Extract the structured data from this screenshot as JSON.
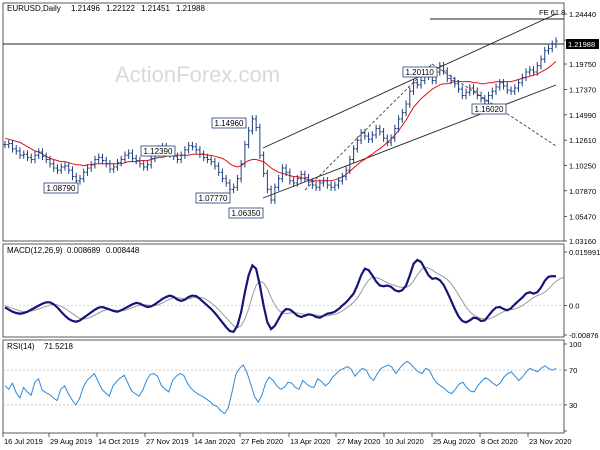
{
  "chart_data": [
    {
      "type": "candlestick",
      "title": "EURUSD,Daily",
      "ohlc": {
        "open": "1.21496",
        "high": "1.22122",
        "low": "1.21451",
        "close": "1.21988"
      },
      "last_price": "1.21988",
      "y_ticks": [
        "1.24440",
        "1.21988",
        "1.19750",
        "1.17370",
        "1.14990",
        "1.12610",
        "1.10250",
        "1.07870",
        "1.05470",
        "1.03160"
      ],
      "ylim": [
        1.0316,
        1.2444
      ],
      "x_ticks": [
        "16 Jul 2019",
        "29 Aug 2019",
        "14 Oct 2019",
        "27 Nov 2019",
        "14 Jan 2020",
        "27 Feb 2020",
        "13 Apr 2020",
        "27 May 2020",
        "10 Jul 2020",
        "25 Aug 2020",
        "8 Oct 2020",
        "23 Nov 2020"
      ],
      "annotations": [
        {
          "text": "1.08790",
          "x": "01 Oct 2019",
          "y": 1.0879
        },
        {
          "text": "1.12390",
          "x": "25 Dec 2019",
          "y": 1.1239
        },
        {
          "text": "1.07770",
          "x": "18 Feb 2020",
          "y": 1.0777
        },
        {
          "text": "1.14960",
          "x": "09 Mar 2020",
          "y": 1.1496
        },
        {
          "text": "1.06350",
          "x": "23 Mar 2020",
          "y": 1.0635
        },
        {
          "text": "1.20110",
          "x": "01 Sep 2020",
          "y": 1.2011
        },
        {
          "text": "1.16020",
          "x": "04 Nov 2020",
          "y": 1.1602
        }
      ],
      "fibonacci_label": "FE 61.8",
      "close_series": [
        1.122,
        1.123,
        1.118,
        1.116,
        1.112,
        1.113,
        1.11,
        1.108,
        1.112,
        1.115,
        1.111,
        1.108,
        1.104,
        1.1,
        1.098,
        1.101,
        1.102,
        1.098,
        1.092,
        1.088,
        1.09,
        1.096,
        1.1,
        1.103,
        1.108,
        1.11,
        1.107,
        1.104,
        1.099,
        1.101,
        1.105,
        1.108,
        1.112,
        1.114,
        1.109,
        1.107,
        1.104,
        1.101,
        1.103,
        1.109,
        1.115,
        1.118,
        1.12,
        1.116,
        1.113,
        1.111,
        1.108,
        1.112,
        1.117,
        1.121,
        1.12,
        1.117,
        1.113,
        1.11,
        1.108,
        1.106,
        1.102,
        1.096,
        1.09,
        1.086,
        1.08,
        1.082,
        1.09,
        1.104,
        1.122,
        1.135,
        1.146,
        1.138,
        1.112,
        1.095,
        1.08,
        1.07,
        1.082,
        1.09,
        1.1,
        1.096,
        1.088,
        1.086,
        1.09,
        1.094,
        1.091,
        1.087,
        1.084,
        1.082,
        1.086,
        1.088,
        1.084,
        1.082,
        1.084,
        1.088,
        1.092,
        1.098,
        1.108,
        1.118,
        1.126,
        1.133,
        1.13,
        1.127,
        1.131,
        1.137,
        1.134,
        1.128,
        1.124,
        1.128,
        1.137,
        1.146,
        1.152,
        1.16,
        1.172,
        1.18,
        1.178,
        1.182,
        1.19,
        1.186,
        1.182,
        1.19,
        1.196,
        1.191,
        1.184,
        1.182,
        1.179,
        1.174,
        1.168,
        1.171,
        1.175,
        1.172,
        1.168,
        1.165,
        1.163,
        1.168,
        1.172,
        1.176,
        1.18,
        1.177,
        1.173,
        1.172,
        1.175,
        1.18,
        1.185,
        1.19,
        1.192,
        1.19,
        1.196,
        1.202,
        1.21,
        1.212,
        1.216,
        1.219
      ],
      "ma_series": [
        1.128,
        1.127,
        1.126,
        1.125,
        1.124,
        1.122,
        1.12,
        1.118,
        1.116,
        1.115,
        1.113,
        1.111,
        1.109,
        1.108,
        1.107,
        1.106,
        1.106,
        1.105,
        1.104,
        1.103,
        1.103,
        1.102,
        1.103,
        1.103,
        1.104,
        1.104,
        1.104,
        1.104,
        1.104,
        1.104,
        1.104,
        1.104,
        1.105,
        1.106,
        1.106,
        1.106,
        1.107,
        1.107,
        1.107,
        1.108,
        1.109,
        1.11,
        1.11,
        1.111,
        1.112,
        1.112,
        1.112,
        1.112,
        1.112,
        1.112,
        1.113,
        1.113,
        1.113,
        1.113,
        1.112,
        1.112,
        1.111,
        1.11,
        1.109,
        1.107,
        1.104,
        1.102,
        1.101,
        1.102,
        1.105,
        1.107,
        1.108,
        1.108,
        1.107,
        1.106,
        1.103,
        1.1,
        1.098,
        1.096,
        1.095,
        1.094,
        1.093,
        1.092,
        1.092,
        1.091,
        1.09,
        1.089,
        1.088,
        1.088,
        1.088,
        1.088,
        1.088,
        1.088,
        1.089,
        1.09,
        1.092,
        1.094,
        1.097,
        1.1,
        1.103,
        1.106,
        1.108,
        1.111,
        1.113,
        1.116,
        1.118,
        1.121,
        1.124,
        1.127,
        1.131,
        1.135,
        1.14,
        1.145,
        1.151,
        1.157,
        1.161,
        1.165,
        1.168,
        1.171,
        1.174,
        1.176,
        1.178,
        1.179,
        1.179,
        1.18,
        1.181,
        1.181,
        1.181,
        1.181,
        1.181,
        1.18,
        1.18,
        1.179,
        1.179,
        1.18,
        1.18,
        1.181,
        1.181,
        1.181,
        1.181,
        1.181,
        1.182,
        1.183,
        1.184,
        1.185,
        1.186,
        1.187,
        1.188,
        1.19,
        1.192,
        1.194,
        1.197,
        1.2
      ]
    },
    {
      "type": "line",
      "title": "MACD(12,26,9)",
      "values_text": [
        "0.008689",
        "0.008448"
      ],
      "y_ticks": [
        "0.015991",
        "0.0",
        "-0.00876"
      ],
      "ylim": [
        -0.00876,
        0.015991
      ],
      "series": [
        {
          "values": [
            -0.0005,
            -0.0012,
            -0.0018,
            -0.0022,
            -0.0024,
            -0.0022,
            -0.0018,
            -0.0012,
            -0.0006,
            0.0,
            0.0006,
            0.001,
            0.001,
            0.0004,
            -0.0006,
            -0.0018,
            -0.003,
            -0.004,
            -0.0046,
            -0.0048,
            -0.0044,
            -0.0036,
            -0.0028,
            -0.002,
            -0.0012,
            -0.0006,
            -0.0004,
            -0.0008,
            -0.0012,
            -0.0016,
            -0.0018,
            -0.0014,
            -0.0008,
            -0.0002,
            0.0004,
            0.0008,
            0.0006,
            0.0,
            -0.0004,
            -0.0002,
            0.0004,
            0.0012,
            0.002,
            0.0026,
            0.003,
            0.0026,
            0.0018,
            0.0014,
            0.0018,
            0.0026,
            0.003,
            0.0028,
            0.002,
            0.001,
            0.0,
            -0.001,
            -0.0022,
            -0.0036,
            -0.005,
            -0.0064,
            -0.0076,
            -0.0078,
            -0.006,
            -0.002,
            0.004,
            0.009,
            0.012,
            0.011,
            0.006,
            0.0,
            -0.005,
            -0.007,
            -0.006,
            -0.004,
            -0.002,
            -0.001,
            -0.0012,
            -0.002,
            -0.003,
            -0.0034,
            -0.003,
            -0.0026,
            -0.0028,
            -0.0034,
            -0.0036,
            -0.003,
            -0.0024,
            -0.0022,
            -0.0018,
            -0.001,
            0.0,
            0.001,
            0.0022,
            0.0036,
            0.006,
            0.009,
            0.011,
            0.0106,
            0.009,
            0.0072,
            0.006,
            0.0058,
            0.006,
            0.0056,
            0.0046,
            0.0042,
            0.0046,
            0.006,
            0.009,
            0.0125,
            0.0136,
            0.013,
            0.011,
            0.009,
            0.008,
            0.0082,
            0.0076,
            0.0062,
            0.004,
            0.0016,
            -0.001,
            -0.0032,
            -0.0046,
            -0.005,
            -0.0044,
            -0.0036,
            -0.0038,
            -0.0046,
            -0.0044,
            -0.003,
            -0.0016,
            -0.0006,
            -0.0004,
            -0.001,
            -0.0014,
            -0.0008,
            0.0004,
            0.0014,
            0.0024,
            0.0036,
            0.004,
            0.0036,
            0.004,
            0.0054,
            0.0074,
            0.0086,
            0.0088,
            0.0087
          ]
        },
        {
          "values": [
            0.0,
            -0.0004,
            -0.0008,
            -0.0012,
            -0.0016,
            -0.0018,
            -0.0018,
            -0.0016,
            -0.0013,
            -0.001,
            -0.0006,
            -0.0002,
            0.0002,
            0.0004,
            0.0002,
            -0.0002,
            -0.0008,
            -0.0016,
            -0.0024,
            -0.0032,
            -0.0038,
            -0.004,
            -0.0038,
            -0.0034,
            -0.0028,
            -0.0022,
            -0.0016,
            -0.0012,
            -0.0012,
            -0.0013,
            -0.0015,
            -0.0016,
            -0.0014,
            -0.001,
            -0.0006,
            -0.0002,
            0.0002,
            0.0003,
            0.0002,
            0.0,
            0.0,
            0.0003,
            0.0008,
            0.0014,
            0.002,
            0.0024,
            0.0024,
            0.0022,
            0.002,
            0.002,
            0.0023,
            0.0025,
            0.0025,
            0.0022,
            0.0016,
            0.0008,
            -0.0001,
            -0.0012,
            -0.0024,
            -0.0036,
            -0.0048,
            -0.006,
            -0.0066,
            -0.006,
            -0.004,
            -0.001,
            0.003,
            0.006,
            0.0072,
            0.0068,
            0.005,
            0.0024,
            0.0002,
            -0.0014,
            -0.0022,
            -0.0024,
            -0.0022,
            -0.0021,
            -0.0022,
            -0.0024,
            -0.0026,
            -0.0027,
            -0.0027,
            -0.0028,
            -0.003,
            -0.0031,
            -0.003,
            -0.0028,
            -0.0026,
            -0.0022,
            -0.0016,
            -0.0008,
            0.0,
            0.001,
            0.0022,
            0.004,
            0.006,
            0.0076,
            0.0084,
            0.0084,
            0.008,
            0.0074,
            0.0068,
            0.0064,
            0.006,
            0.0056,
            0.0054,
            0.0054,
            0.006,
            0.0074,
            0.0092,
            0.0106,
            0.0114,
            0.0112,
            0.0106,
            0.0098,
            0.0092,
            0.0086,
            0.0078,
            0.0066,
            0.005,
            0.0032,
            0.0014,
            -0.0004,
            -0.0018,
            -0.0028,
            -0.0034,
            -0.0038,
            -0.004,
            -0.004,
            -0.0036,
            -0.003,
            -0.0024,
            -0.0018,
            -0.0014,
            -0.0012,
            -0.001,
            -0.0006,
            0.0,
            0.0008,
            0.0016,
            0.0024,
            0.003,
            0.0034,
            0.004,
            0.005,
            0.0062,
            0.0072,
            0.008,
            0.0084
          ]
        }
      ]
    },
    {
      "type": "line",
      "title": "RSI(14)",
      "values_text": [
        "71.5218"
      ],
      "y_ticks": [
        "100",
        "70",
        "30",
        "0"
      ],
      "ylim": [
        0,
        100
      ],
      "series": [
        {
          "values": [
            52,
            48,
            55,
            44,
            38,
            50,
            45,
            41,
            56,
            60,
            47,
            44,
            42,
            38,
            35,
            48,
            52,
            43,
            36,
            30,
            37,
            50,
            58,
            62,
            66,
            57,
            48,
            44,
            40,
            52,
            57,
            61,
            64,
            55,
            46,
            43,
            40,
            47,
            58,
            65,
            66,
            63,
            52,
            48,
            45,
            58,
            63,
            66,
            64,
            55,
            49,
            45,
            42,
            40,
            37,
            34,
            30,
            28,
            23,
            20,
            27,
            45,
            65,
            72,
            76,
            67,
            54,
            40,
            33,
            41,
            55,
            62,
            58,
            52,
            48,
            50,
            56,
            55,
            50,
            48,
            58,
            54,
            51,
            50,
            60,
            57,
            52,
            55,
            62,
            66,
            70,
            72,
            74,
            71,
            63,
            68,
            72,
            70,
            62,
            58,
            66,
            72,
            74,
            76,
            73,
            66,
            72,
            77,
            80,
            77,
            72,
            68,
            66,
            72,
            70,
            61,
            55,
            52,
            49,
            45,
            43,
            48,
            54,
            56,
            50,
            46,
            45,
            52,
            57,
            61,
            59,
            55,
            52,
            55,
            62,
            66,
            68,
            63,
            58,
            62,
            68,
            72,
            70,
            68,
            72,
            75,
            72,
            70,
            72
          ]
        }
      ]
    }
  ]
}
